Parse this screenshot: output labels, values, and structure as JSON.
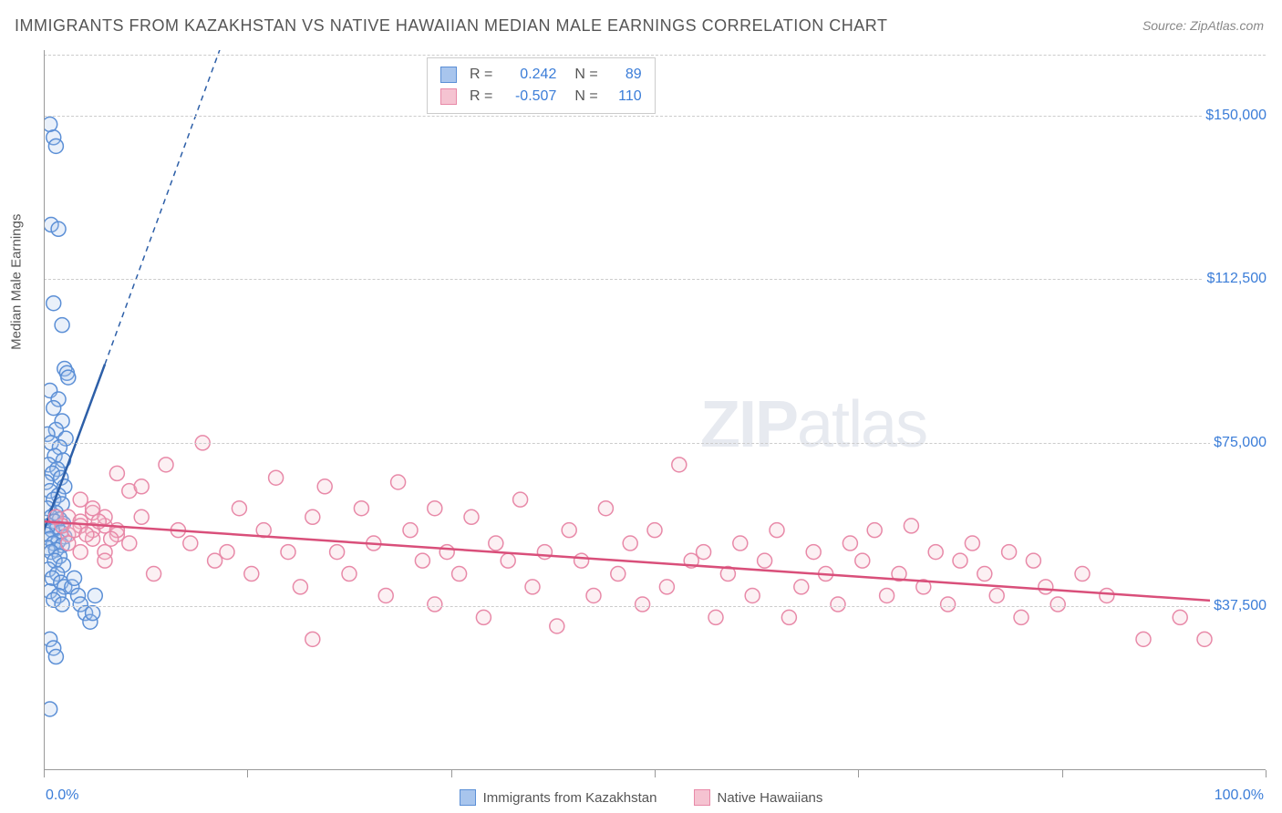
{
  "title": "IMMIGRANTS FROM KAZAKHSTAN VS NATIVE HAWAIIAN MEDIAN MALE EARNINGS CORRELATION CHART",
  "source": "Source: ZipAtlas.com",
  "watermark_bold": "ZIP",
  "watermark_rest": "atlas",
  "y_axis_label": "Median Male Earnings",
  "chart": {
    "type": "scatter",
    "background_color": "#ffffff",
    "grid_color": "#cccccc",
    "axis_color": "#999999",
    "text_color": "#555555",
    "accent_color": "#3b7dd8",
    "xlim": [
      0,
      100
    ],
    "ylim": [
      0,
      165000
    ],
    "x_ticks": [
      0,
      16.67,
      33.33,
      50,
      66.67,
      83.33,
      100
    ],
    "x_labels": {
      "min": "0.0%",
      "max": "100.0%"
    },
    "y_gridlines": [
      {
        "value": 37500,
        "label": "$37,500"
      },
      {
        "value": 75000,
        "label": "$75,000"
      },
      {
        "value": 112500,
        "label": "$112,500"
      },
      {
        "value": 150000,
        "label": "$150,000"
      }
    ],
    "marker_radius": 8,
    "marker_stroke_width": 1.5,
    "marker_fill_opacity": 0.25,
    "trend_line_width": 2.5,
    "trend_extrapolate_dash": "6,5"
  },
  "series": [
    {
      "name": "Immigrants from Kazakhstan",
      "color_fill": "#a8c5ed",
      "color_stroke": "#5b8fd6",
      "trend_color": "#2d5fa8",
      "R": "0.242",
      "N": "89",
      "trend": {
        "x1": 0,
        "y1": 55000,
        "x2_solid": 5,
        "y2_solid": 93000,
        "x2_dash": 17,
        "y2_dash": 185000
      },
      "points": [
        [
          0.5,
          148000
        ],
        [
          0.8,
          145000
        ],
        [
          1.0,
          143000
        ],
        [
          0.6,
          125000
        ],
        [
          1.2,
          124000
        ],
        [
          0.8,
          107000
        ],
        [
          1.5,
          102000
        ],
        [
          1.7,
          92000
        ],
        [
          1.9,
          91000
        ],
        [
          2.0,
          90000
        ],
        [
          0.5,
          87000
        ],
        [
          1.2,
          85000
        ],
        [
          0.8,
          83000
        ],
        [
          1.5,
          80000
        ],
        [
          1.0,
          78000
        ],
        [
          0.3,
          77000
        ],
        [
          1.8,
          76000
        ],
        [
          0.6,
          75000
        ],
        [
          1.3,
          74000
        ],
        [
          0.9,
          72000
        ],
        [
          1.6,
          71000
        ],
        [
          0.4,
          70000
        ],
        [
          1.1,
          69000
        ],
        [
          0.7,
          68000
        ],
        [
          1.4,
          67000
        ],
        [
          0.2,
          66000
        ],
        [
          1.7,
          65000
        ],
        [
          0.5,
          64000
        ],
        [
          1.2,
          63000
        ],
        [
          0.8,
          62000
        ],
        [
          1.5,
          61000
        ],
        [
          0.3,
          60000
        ],
        [
          1.0,
          59000
        ],
        [
          0.6,
          58000
        ],
        [
          1.3,
          57500
        ],
        [
          0.9,
          57000
        ],
        [
          1.6,
          56500
        ],
        [
          0.4,
          56000
        ],
        [
          1.1,
          55500
        ],
        [
          0.7,
          55000
        ],
        [
          1.4,
          54500
        ],
        [
          0.2,
          54000
        ],
        [
          1.7,
          53500
        ],
        [
          0.5,
          53000
        ],
        [
          1.2,
          52500
        ],
        [
          0.8,
          52000
        ],
        [
          1.5,
          51500
        ],
        [
          0.3,
          51000
        ],
        [
          1.0,
          50500
        ],
        [
          0.6,
          50000
        ],
        [
          1.3,
          49000
        ],
        [
          0.9,
          48000
        ],
        [
          1.6,
          47000
        ],
        [
          0.4,
          46000
        ],
        [
          1.1,
          45000
        ],
        [
          0.7,
          44000
        ],
        [
          1.4,
          43000
        ],
        [
          1.7,
          42000
        ],
        [
          0.5,
          41000
        ],
        [
          1.2,
          40000
        ],
        [
          0.8,
          39000
        ],
        [
          1.5,
          38000
        ],
        [
          2.3,
          42000
        ],
        [
          2.5,
          44000
        ],
        [
          2.8,
          40000
        ],
        [
          3.0,
          38000
        ],
        [
          3.4,
          36000
        ],
        [
          3.8,
          34000
        ],
        [
          4.0,
          36000
        ],
        [
          4.2,
          40000
        ],
        [
          0.5,
          30000
        ],
        [
          0.8,
          28000
        ],
        [
          1.0,
          26000
        ],
        [
          0.5,
          14000
        ]
      ]
    },
    {
      "name": "Native Hawaiians",
      "color_fill": "#f5c3d1",
      "color_stroke": "#e889a8",
      "trend_color": "#d94f7a",
      "R": "-0.507",
      "N": "110",
      "trend": {
        "x1": 0,
        "y1": 57000,
        "x2_solid": 100,
        "y2_solid": 38000
      },
      "points": [
        [
          2,
          58000
        ],
        [
          3,
          62000
        ],
        [
          4,
          55000
        ],
        [
          5,
          50000
        ],
        [
          6,
          68000
        ],
        [
          7,
          64000
        ],
        [
          8,
          65000
        ],
        [
          9,
          45000
        ],
        [
          10,
          70000
        ],
        [
          11,
          55000
        ],
        [
          12,
          52000
        ],
        [
          13,
          75000
        ],
        [
          14,
          48000
        ],
        [
          15,
          50000
        ],
        [
          16,
          60000
        ],
        [
          17,
          45000
        ],
        [
          18,
          55000
        ],
        [
          19,
          67000
        ],
        [
          20,
          50000
        ],
        [
          21,
          42000
        ],
        [
          22,
          58000
        ],
        [
          22,
          30000
        ],
        [
          23,
          65000
        ],
        [
          24,
          50000
        ],
        [
          25,
          45000
        ],
        [
          26,
          60000
        ],
        [
          27,
          52000
        ],
        [
          28,
          40000
        ],
        [
          29,
          66000
        ],
        [
          30,
          55000
        ],
        [
          31,
          48000
        ],
        [
          32,
          38000
        ],
        [
          32,
          60000
        ],
        [
          33,
          50000
        ],
        [
          34,
          45000
        ],
        [
          35,
          58000
        ],
        [
          36,
          35000
        ],
        [
          37,
          52000
        ],
        [
          38,
          48000
        ],
        [
          39,
          62000
        ],
        [
          40,
          42000
        ],
        [
          41,
          50000
        ],
        [
          42,
          33000
        ],
        [
          43,
          55000
        ],
        [
          44,
          48000
        ],
        [
          45,
          40000
        ],
        [
          46,
          60000
        ],
        [
          47,
          45000
        ],
        [
          48,
          52000
        ],
        [
          49,
          38000
        ],
        [
          50,
          55000
        ],
        [
          51,
          42000
        ],
        [
          52,
          70000
        ],
        [
          53,
          48000
        ],
        [
          54,
          50000
        ],
        [
          55,
          35000
        ],
        [
          56,
          45000
        ],
        [
          57,
          52000
        ],
        [
          58,
          40000
        ],
        [
          59,
          48000
        ],
        [
          60,
          55000
        ],
        [
          61,
          35000
        ],
        [
          62,
          42000
        ],
        [
          63,
          50000
        ],
        [
          64,
          45000
        ],
        [
          65,
          38000
        ],
        [
          66,
          52000
        ],
        [
          67,
          48000
        ],
        [
          68,
          55000
        ],
        [
          69,
          40000
        ],
        [
          70,
          45000
        ],
        [
          71,
          56000
        ],
        [
          72,
          42000
        ],
        [
          73,
          50000
        ],
        [
          74,
          38000
        ],
        [
          75,
          48000
        ],
        [
          76,
          52000
        ],
        [
          77,
          45000
        ],
        [
          78,
          40000
        ],
        [
          79,
          50000
        ],
        [
          80,
          35000
        ],
        [
          81,
          48000
        ],
        [
          82,
          42000
        ],
        [
          83,
          38000
        ],
        [
          85,
          45000
        ],
        [
          87,
          40000
        ],
        [
          90,
          30000
        ],
        [
          93,
          35000
        ],
        [
          95,
          30000
        ],
        [
          3,
          57000
        ],
        [
          4,
          59000
        ],
        [
          5,
          56000
        ],
        [
          6,
          54000
        ],
        [
          7,
          52000
        ],
        [
          8,
          58000
        ],
        [
          2,
          54000
        ],
        [
          3,
          56000
        ],
        [
          4,
          53000
        ],
        [
          5,
          58000
        ],
        [
          6,
          55000
        ],
        [
          1.5,
          56000
        ],
        [
          2.5,
          55000
        ],
        [
          3.5,
          54000
        ],
        [
          4.5,
          57000
        ],
        [
          5.5,
          53000
        ],
        [
          1,
          58000
        ],
        [
          2,
          52000
        ],
        [
          3,
          50000
        ],
        [
          4,
          60000
        ],
        [
          5,
          48000
        ]
      ]
    }
  ],
  "bottom_legend": [
    {
      "label": "Immigrants from Kazakhstan",
      "fill": "#a8c5ed",
      "stroke": "#5b8fd6"
    },
    {
      "label": "Native Hawaiians",
      "fill": "#f5c3d1",
      "stroke": "#e889a8"
    }
  ]
}
